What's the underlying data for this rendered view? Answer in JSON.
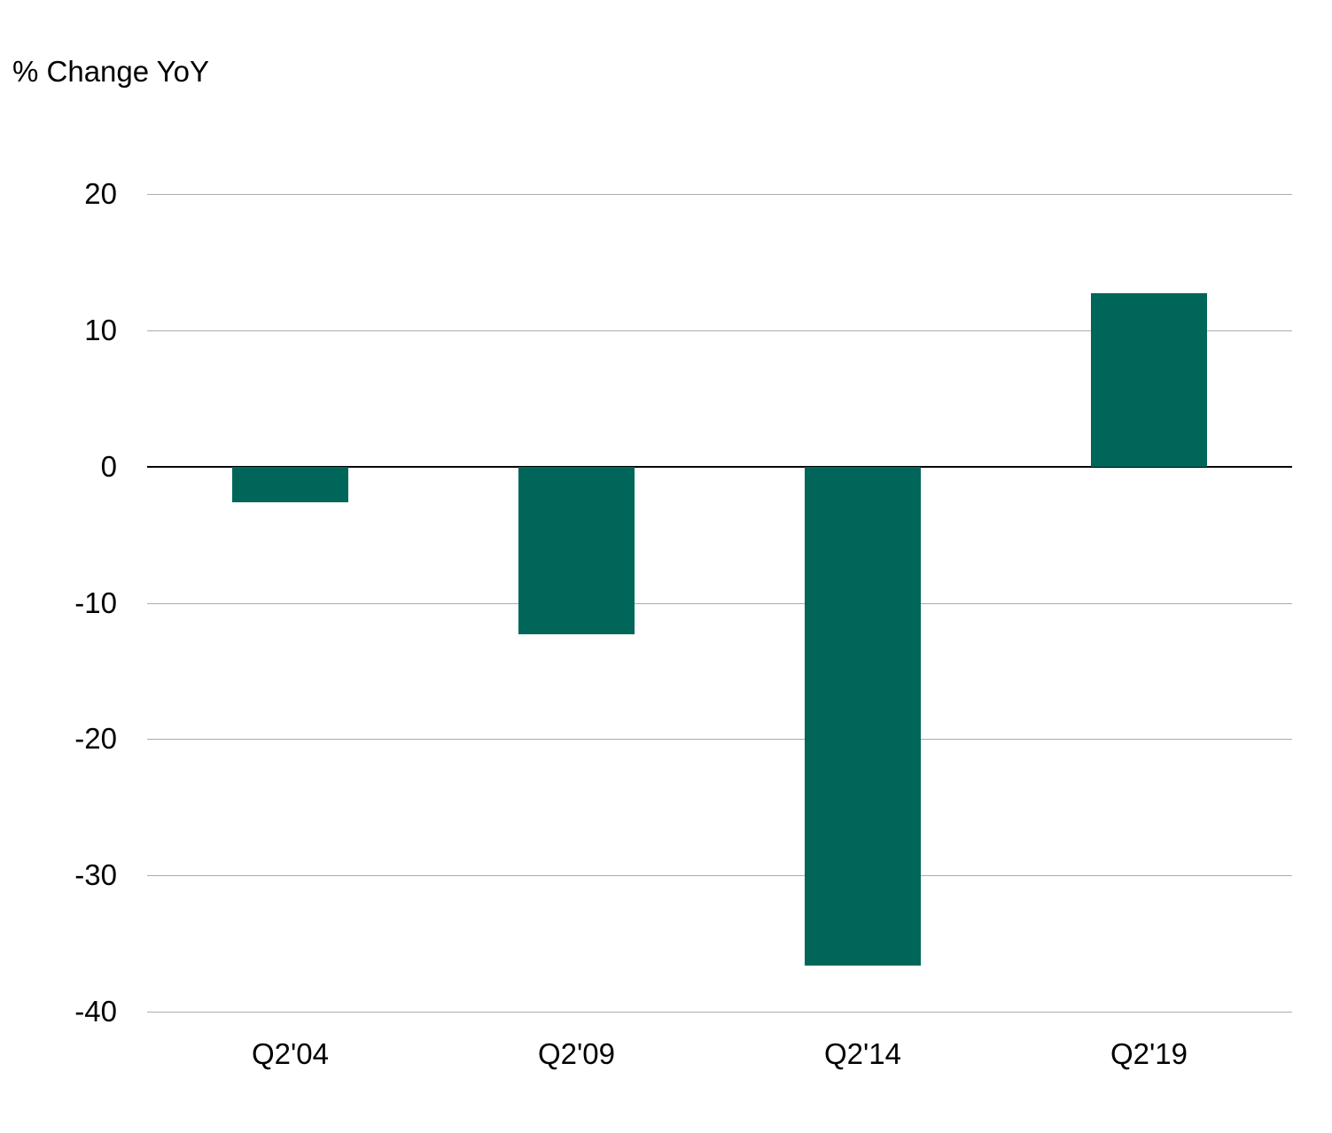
{
  "chart_data": {
    "type": "bar",
    "title": "% Change YoY",
    "categories": [
      "Q2'04",
      "Q2'09",
      "Q2'14",
      "Q2'19"
    ],
    "values": [
      -2.6,
      -12.3,
      -36.6,
      12.7
    ],
    "xlabel": "",
    "ylabel": "% Change YoY",
    "ylim": [
      -40,
      20
    ],
    "yticks": [
      20,
      10,
      0,
      -10,
      -20,
      -30,
      -40
    ],
    "grid": "horizontal",
    "legend": "none",
    "colors": {
      "bar": "#006659",
      "gridline": "#ACACAC",
      "zero_line": "#000000",
      "text": "#000000",
      "background": "#ffffff"
    }
  }
}
